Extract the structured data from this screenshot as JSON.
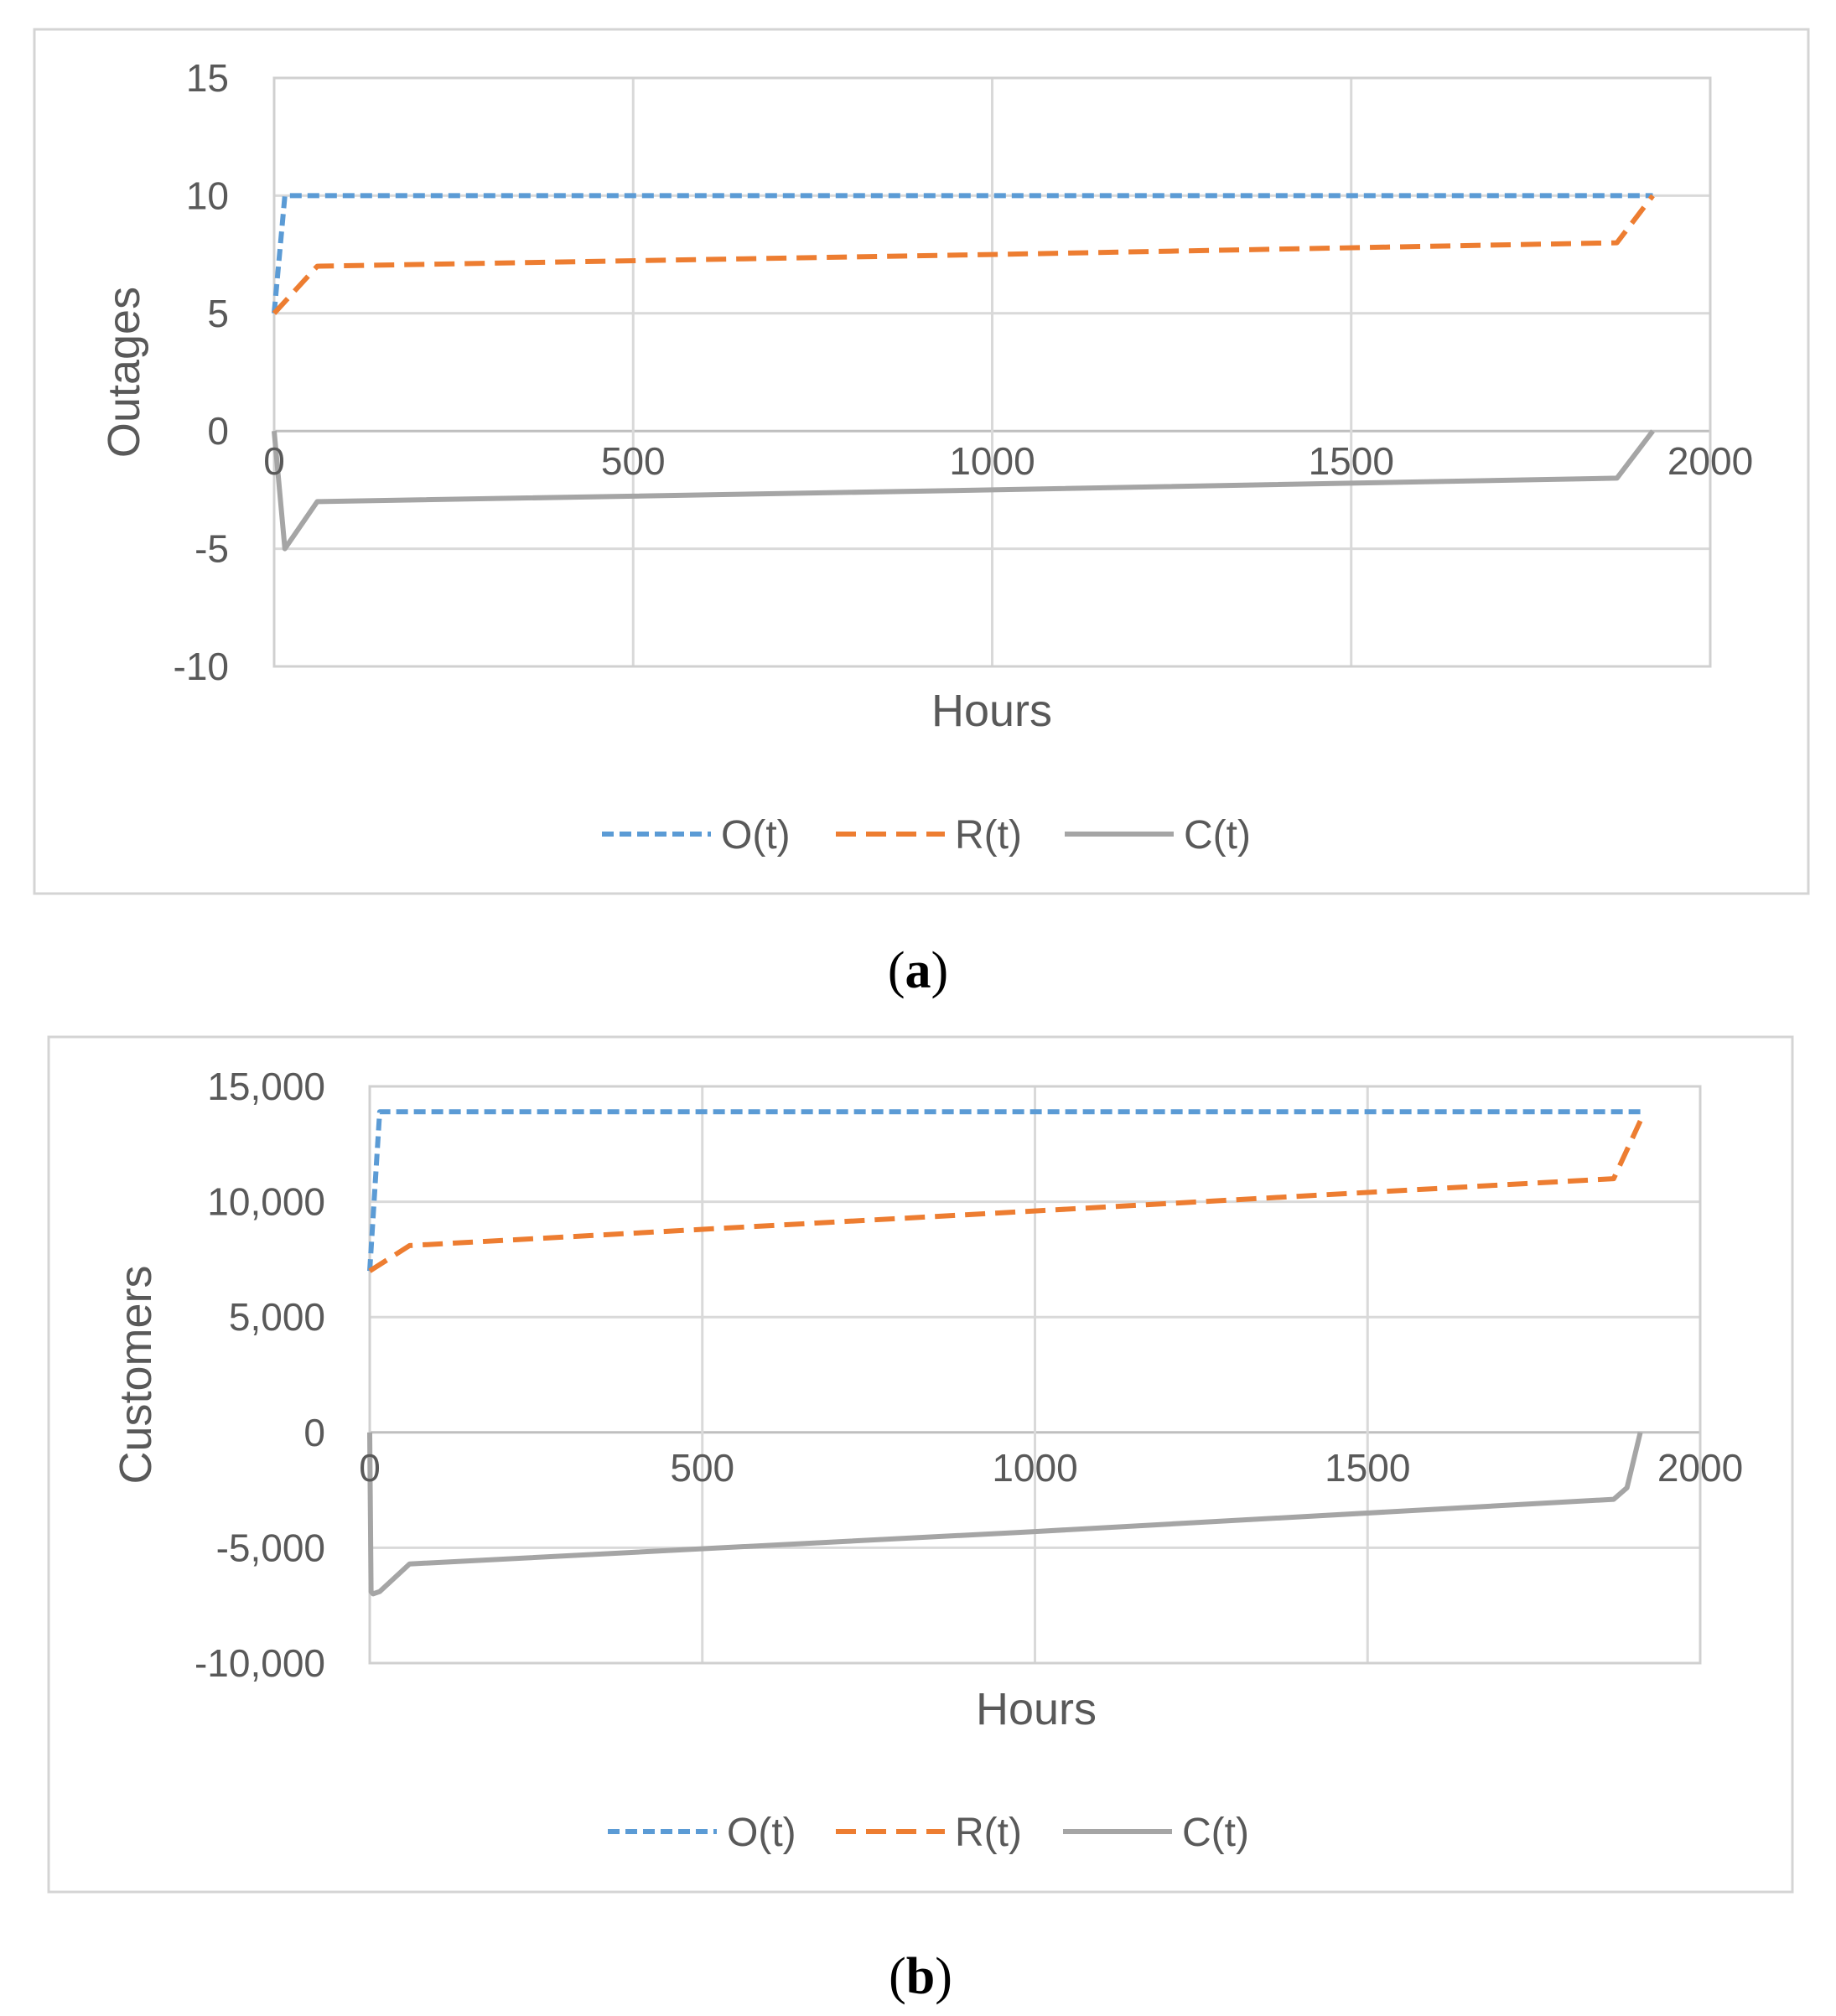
{
  "chart_data": [
    {
      "type": "line",
      "caption": "a",
      "xlabel": "Hours",
      "ylabel": "Outages",
      "xlim": [
        0,
        2000
      ],
      "ylim": [
        -10,
        15
      ],
      "xticks": [
        0,
        500,
        1000,
        1500,
        2000
      ],
      "yticks": [
        -10,
        -5,
        0,
        5,
        10,
        15
      ],
      "x_tick_labels": [
        "0",
        "500",
        "1000",
        "1500",
        "2000"
      ],
      "y_tick_labels": [
        "-10",
        "-5",
        "0",
        "5",
        "10",
        "15"
      ],
      "grid": true,
      "legend_position": "bottom",
      "series": [
        {
          "name": "O(t)",
          "color": "#5b9bd5",
          "style": "dotted",
          "points": [
            [
              0,
              5
            ],
            [
              15,
              10
            ],
            [
              1920,
              10
            ]
          ]
        },
        {
          "name": "R(t)",
          "color": "#ed7d31",
          "style": "dashed",
          "points": [
            [
              0,
              5
            ],
            [
              60,
              7
            ],
            [
              1000,
              7.5
            ],
            [
              1870,
              8
            ],
            [
              1920,
              10
            ]
          ]
        },
        {
          "name": "C(t)",
          "color": "#a5a5a5",
          "style": "solid",
          "points": [
            [
              0,
              0
            ],
            [
              15,
              -5
            ],
            [
              60,
              -3
            ],
            [
              1000,
              -2.5
            ],
            [
              1870,
              -2
            ],
            [
              1920,
              0
            ]
          ]
        }
      ]
    },
    {
      "type": "line",
      "caption": "b",
      "xlabel": "Hours",
      "ylabel": "Customers",
      "xlim": [
        0,
        2000
      ],
      "ylim": [
        -10000,
        15000
      ],
      "xticks": [
        0,
        500,
        1000,
        1500,
        2000
      ],
      "yticks": [
        -10000,
        -5000,
        0,
        5000,
        10000,
        15000
      ],
      "x_tick_labels": [
        "0",
        "500",
        "1000",
        "1500",
        "2000"
      ],
      "y_tick_labels": [
        "-10,000",
        "-5,000",
        "0",
        "5,000",
        "10,000",
        "15,000"
      ],
      "grid": true,
      "legend_position": "bottom",
      "series": [
        {
          "name": "O(t)",
          "color": "#5b9bd5",
          "style": "dotted",
          "points": [
            [
              0,
              7000
            ],
            [
              15,
              13900
            ],
            [
              1910,
              13900
            ]
          ]
        },
        {
          "name": "R(t)",
          "color": "#ed7d31",
          "style": "dashed",
          "points": [
            [
              0,
              7000
            ],
            [
              60,
              8100
            ],
            [
              1000,
              9600
            ],
            [
              1870,
              11000
            ],
            [
              1910,
              13500
            ]
          ]
        },
        {
          "name": "C(t)",
          "color": "#a5a5a5",
          "style": "solid",
          "points": [
            [
              0,
              0
            ],
            [
              2,
              -6900
            ],
            [
              5,
              -7000
            ],
            [
              15,
              -6900
            ],
            [
              60,
              -5700
            ],
            [
              1000,
              -4300
            ],
            [
              1870,
              -2900
            ],
            [
              1890,
              -2400
            ],
            [
              1910,
              0
            ]
          ]
        }
      ]
    }
  ]
}
